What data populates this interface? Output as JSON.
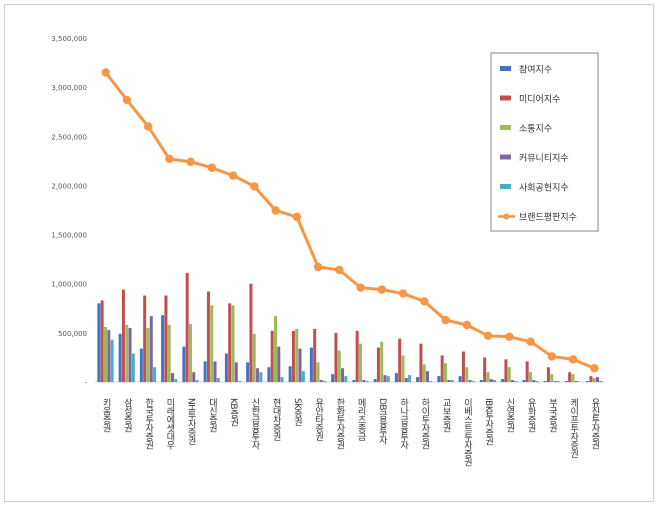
{
  "chart_data": {
    "type": "bar",
    "categories": [
      "키움증권",
      "삼성증권",
      "한국투자증권",
      "미래에셋대우",
      "NH투자증권",
      "대신증권",
      "KB증권",
      "신한금융투자",
      "현대차증권",
      "SK증권",
      "유안타증권",
      "한화투자증권",
      "메리츠종금",
      "DB금융투자",
      "하나금융투자",
      "하이투자증권",
      "교보증권",
      "이베스트투자증권",
      "IBK투자증권",
      "신영증권",
      "유화증권",
      "부국증권",
      "케이프투자증권",
      "유진투자증권"
    ],
    "series": [
      {
        "name": "참여지수",
        "color": "#4472c4",
        "values": [
          800000,
          490000,
          340000,
          680000,
          360000,
          210000,
          290000,
          200000,
          150000,
          160000,
          350000,
          80000,
          20000,
          30000,
          90000,
          50000,
          60000,
          60000,
          20000,
          30000,
          20000,
          10000,
          10000,
          10000
        ]
      },
      {
        "name": "미디어지수",
        "color": "#c0504d",
        "values": [
          830000,
          940000,
          880000,
          880000,
          1110000,
          920000,
          800000,
          1000000,
          520000,
          520000,
          540000,
          500000,
          520000,
          350000,
          440000,
          390000,
          270000,
          310000,
          250000,
          230000,
          210000,
          150000,
          100000,
          60000
        ]
      },
      {
        "name": "소통지수",
        "color": "#9bbb59",
        "values": [
          560000,
          580000,
          550000,
          580000,
          590000,
          780000,
          780000,
          490000,
          670000,
          540000,
          200000,
          320000,
          390000,
          410000,
          270000,
          180000,
          190000,
          150000,
          100000,
          150000,
          100000,
          80000,
          80000,
          40000
        ]
      },
      {
        "name": "커뮤니티지수",
        "color": "#8064a2",
        "values": [
          530000,
          550000,
          670000,
          90000,
          100000,
          210000,
          200000,
          140000,
          360000,
          340000,
          20000,
          140000,
          20000,
          70000,
          40000,
          110000,
          20000,
          20000,
          30000,
          20000,
          20000,
          10000,
          10000,
          50000
        ]
      },
      {
        "name": "사회공헌지수",
        "color": "#4bacc6",
        "values": [
          430000,
          290000,
          150000,
          30000,
          20000,
          40000,
          10000,
          100000,
          50000,
          110000,
          10000,
          60000,
          10000,
          60000,
          70000,
          10000,
          20000,
          10000,
          20000,
          10000,
          10000,
          10000,
          5000,
          10000
        ]
      }
    ],
    "line": {
      "name": "브랜드평판지수",
      "color": "#f79646",
      "values": [
        3150000,
        2870000,
        2600000,
        2270000,
        2240000,
        2180000,
        2100000,
        1990000,
        1745000,
        1680000,
        1170000,
        1140000,
        960000,
        940000,
        900000,
        820000,
        630000,
        580000,
        470000,
        460000,
        410000,
        260000,
        230000,
        140000
      ]
    },
    "ylim": [
      0,
      3500000
    ],
    "yticks": [
      "3,500,000",
      "3,000,000",
      "2,500,000",
      "2,000,000",
      "1,500,000",
      "1,000,000",
      "500,000",
      "-"
    ],
    "grid": false,
    "legend": "top-right"
  }
}
